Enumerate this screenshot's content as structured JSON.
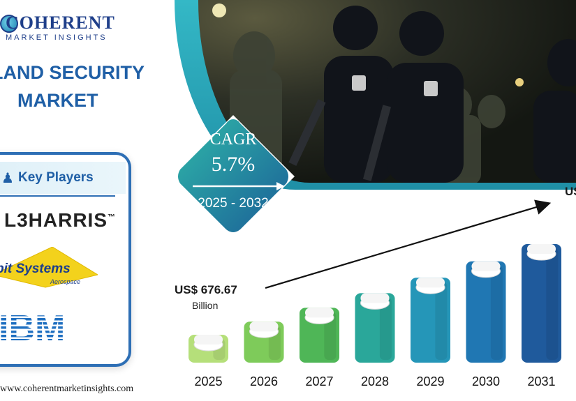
{
  "brand": {
    "name": "COHERENT",
    "tagline": "MARKET INSIGHTS"
  },
  "title": {
    "line1": "ELAND SECURITY",
    "line2": "MARKET"
  },
  "key_players": {
    "heading": "Key Players",
    "companies": [
      "L3HARRIS",
      "bit Systems",
      "Aerospace",
      "IBM"
    ]
  },
  "cagr": {
    "label": "CAGR",
    "value": "5.7%",
    "period": "2025 - 2032"
  },
  "start_value": {
    "amount": "US$ 676.67",
    "unit": "Billion"
  },
  "end_value": {
    "amount": "US"
  },
  "website": "www.coherentmarketinsights.com",
  "colors": {
    "brand_blue": "#1f5fa6",
    "teal": "#2aa7b8",
    "dark_blue": "#1f4f9a",
    "green_light": "#b5df7a"
  },
  "chart_data": {
    "type": "bar",
    "categories": [
      "2025",
      "2026",
      "2027",
      "2028",
      "2029",
      "2030",
      "2031"
    ],
    "values": [
      676.67,
      715.24,
      756.01,
      799.1,
      844.65,
      892.8,
      943.69
    ],
    "title": "",
    "xlabel": "",
    "ylabel": "",
    "colors": [
      "#b5df7a",
      "#7ecb5a",
      "#4fb657",
      "#2aa79a",
      "#2596b8",
      "#2077b3",
      "#1f5a9c"
    ]
  }
}
